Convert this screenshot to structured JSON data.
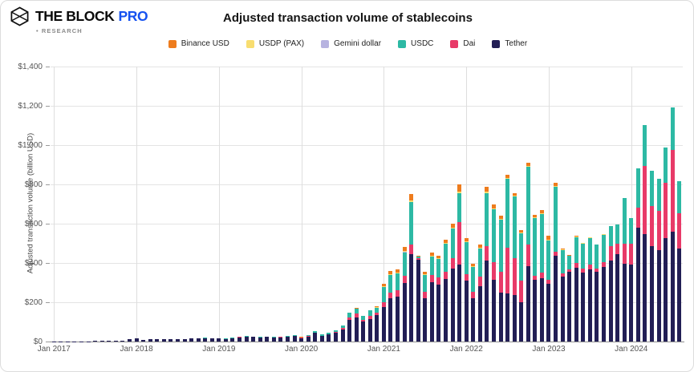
{
  "header": {
    "brand": "THE BLOCK",
    "brand_suffix": "PRO",
    "sub_brand": "• RESEARCH"
  },
  "chart": {
    "title": "Adjusted transaction volume of stablecoins"
  },
  "chart_data": {
    "type": "bar",
    "stacked": true,
    "title": "Adjusted transaction volume of stablecoins",
    "xlabel": "",
    "ylabel": "Adjusted transaction volume (billion USD)",
    "ylim": [
      0,
      1400
    ],
    "grid": true,
    "legend_position": "top",
    "y_tick_values": [
      0,
      200,
      400,
      600,
      800,
      1000,
      1200,
      1400
    ],
    "y_tick_labels": [
      "$0",
      "$200",
      "$400",
      "$600",
      "$800",
      "$1,000",
      "$1,200",
      "$1,400"
    ],
    "x_tick_positions": [
      0,
      12,
      24,
      36,
      48,
      60,
      72,
      84
    ],
    "x_tick_labels": [
      "Jan 2017",
      "Jan 2018",
      "Jan 2019",
      "Jan 2020",
      "Jan 2021",
      "Jan 2022",
      "Jan 2023",
      "Jan 2024"
    ],
    "start_month": "Jan 2017",
    "end_month": "Aug 2024",
    "unit": "billion USD",
    "legend_order": [
      "busd",
      "usdp",
      "gemini",
      "usdc",
      "dai",
      "tether"
    ],
    "series": [
      {
        "id": "tether",
        "name": "Tether",
        "color": "#221e55",
        "values": [
          0.4,
          0.5,
          0.6,
          0.8,
          1.5,
          2,
          2.5,
          3,
          3.5,
          4,
          6,
          11,
          18,
          9,
          11,
          12,
          14,
          12,
          11,
          13,
          15,
          15,
          18,
          15,
          16,
          13,
          17,
          22,
          25,
          23,
          21,
          23,
          20,
          22,
          25,
          27,
          18,
          26,
          43,
          28,
          35,
          45,
          60,
          109,
          121,
          101,
          113,
          134,
          174,
          222,
          230,
          300,
          445,
          417,
          222,
          304,
          290,
          317,
          371,
          392,
          311,
          222,
          283,
          413,
          316,
          251,
          243,
          235,
          202,
          384,
          316,
          324,
          295,
          437,
          331,
          357,
          377,
          352,
          368,
          355,
          380,
          412,
          445,
          397,
          392,
          579,
          546,
          486,
          465,
          526,
          559,
          473
        ]
      },
      {
        "id": "dai",
        "name": "Dai",
        "color": "#e83a68",
        "values": [
          0,
          0,
          0,
          0,
          0,
          0,
          0,
          0,
          0,
          0,
          0,
          0,
          0,
          0,
          0,
          0,
          0,
          0,
          0,
          0,
          0,
          0,
          0,
          0,
          0.5,
          0.5,
          0.6,
          0.7,
          0.8,
          0.8,
          0.8,
          0.9,
          1,
          1.2,
          1.3,
          1.4,
          1.5,
          2,
          3,
          2.5,
          3,
          4,
          8,
          15,
          20,
          10,
          18,
          15,
          25,
          28,
          30,
          35,
          50,
          6,
          30,
          35,
          35,
          40,
          54,
          215,
          33,
          33,
          49,
          73,
          89,
          105,
          235,
          190,
          110,
          110,
          20,
          28,
          21,
          20,
          14,
          12,
          25,
          20,
          25,
          18,
          25,
          74,
          53,
          101,
          106,
          101,
          348,
          202,
          202,
          283,
          417,
          182
        ]
      },
      {
        "id": "usdc",
        "name": "USDC",
        "color": "#2db9a4",
        "values": [
          0,
          0,
          0,
          0,
          0,
          0,
          0,
          0,
          0,
          0,
          0,
          0,
          0,
          0,
          0,
          0,
          0,
          0,
          0,
          0,
          0.3,
          0.6,
          0.8,
          0.7,
          1,
          1,
          1.2,
          1.5,
          1.6,
          1.5,
          1.6,
          1.8,
          1.8,
          2,
          2.2,
          2.4,
          2.5,
          3.5,
          6,
          5,
          5.5,
          7,
          12,
          21,
          27,
          19,
          27,
          24,
          78,
          90,
          88,
          120,
          215,
          9,
          85,
          95,
          95,
          140,
          150,
          150,
          162,
          125,
          143,
          271,
          267,
          264,
          352,
          315,
          238,
          396,
          294,
          298,
          200,
          330,
          120,
          66,
          128,
          125,
          132,
          120,
          138,
          100,
          97,
          232,
          129,
          202,
          207,
          182,
          162,
          180,
          216,
          161
        ]
      },
      {
        "id": "gemini",
        "name": "Gemini dollar",
        "color": "#b7b3e0",
        "values": [
          0,
          0,
          0,
          0,
          0,
          0,
          0,
          0,
          0,
          0,
          0,
          0,
          0,
          0,
          0,
          0,
          0,
          0,
          0,
          0,
          0.1,
          0.2,
          0.3,
          0.3,
          0.2,
          0.1,
          0.1,
          0.1,
          0.1,
          0.1,
          0.1,
          0.1,
          0.1,
          0.1,
          0.1,
          0.1,
          0.1,
          0.1,
          0.2,
          0.1,
          0.1,
          0.1,
          0.2,
          0.2,
          0.2,
          0.2,
          0.2,
          0.2,
          0.2,
          0.2,
          0.2,
          0.3,
          0.3,
          0.1,
          0.2,
          0.2,
          0.2,
          0.2,
          0.2,
          0.2,
          0.2,
          0.2,
          0.2,
          0.2,
          0.2,
          0.1,
          0.1,
          0.1,
          0.1,
          0.1,
          0.1,
          0.1,
          0.1,
          0.1,
          0.1,
          0.1,
          0.1,
          0.1,
          0.1,
          0.1,
          0.1,
          0.1,
          0.1,
          0.1,
          0.1,
          0.1,
          0.1,
          0.1,
          0.1,
          0.1,
          0.1,
          0.1
        ]
      },
      {
        "id": "usdp",
        "name": "USDP (PAX)",
        "color": "#f8dd70",
        "values": [
          0,
          0,
          0,
          0,
          0,
          0,
          0,
          0,
          0,
          0,
          0,
          0,
          0,
          0,
          0,
          0,
          0,
          0,
          0,
          0,
          0.3,
          0.6,
          0.8,
          0.7,
          0.5,
          0.4,
          0.4,
          0.4,
          0.5,
          0.4,
          0.4,
          0.4,
          0.4,
          0.5,
          0.5,
          0.5,
          0.4,
          0.5,
          0.8,
          0.6,
          0.6,
          0.8,
          1,
          1,
          1,
          1,
          1,
          2,
          4,
          4,
          4,
          5,
          8,
          1,
          4,
          4,
          4,
          5,
          5,
          5,
          4,
          3,
          4,
          6,
          5,
          4,
          4,
          4,
          4,
          4,
          3,
          3,
          3,
          3,
          4,
          3,
          6,
          5,
          5,
          2,
          2,
          1,
          1,
          1,
          0,
          0,
          0,
          0,
          0,
          0,
          0,
          0
        ]
      },
      {
        "id": "busd",
        "name": "Binance USD",
        "color": "#ee7c1d",
        "values": [
          0,
          0,
          0,
          0,
          0,
          0,
          0,
          0,
          0,
          0,
          0,
          0,
          0,
          0,
          0,
          0,
          0,
          0,
          0,
          0,
          0,
          0,
          0,
          0,
          0,
          0,
          0,
          0,
          0,
          0,
          0,
          0,
          0,
          0.1,
          0.1,
          0.2,
          0.2,
          0.3,
          0.5,
          0.4,
          0.5,
          0.8,
          1,
          1,
          1,
          1,
          1,
          5,
          12,
          16,
          16,
          22,
          32,
          3,
          14,
          15,
          14,
          17,
          20,
          38,
          16,
          14,
          15,
          26,
          19,
          15,
          16,
          13,
          13,
          17,
          14,
          15,
          21,
          20,
          3,
          2,
          2,
          1,
          1,
          1,
          1,
          0,
          0,
          0,
          0,
          0,
          0,
          0,
          0,
          0,
          0,
          0
        ]
      }
    ]
  }
}
